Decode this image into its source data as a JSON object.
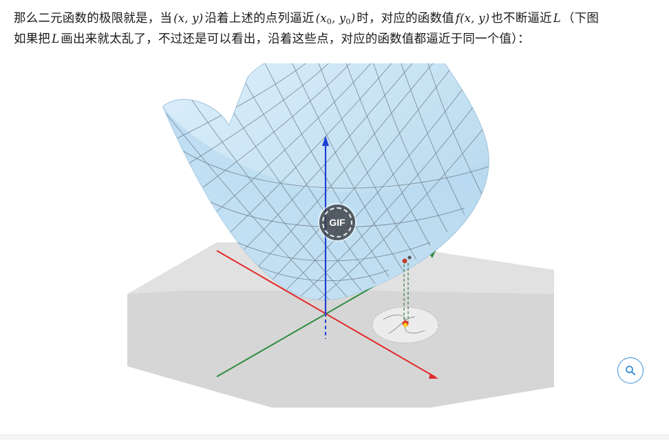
{
  "article": {
    "line1": {
      "t1": "那么二元函数的极限就是，当",
      "m1": "(x, y)",
      "t2": "沿着上述的点列逼近",
      "m2_open": "(x",
      "m2_sub1": "0",
      "m2_mid": ", y",
      "m2_sub2": "0",
      "m2_close": ")",
      "t3": "时，对应的函数值",
      "m3": "f(x, y)",
      "t4": "也不断逼近",
      "m4": "L",
      "t5": "（下图"
    },
    "line2": {
      "t1": "如果把",
      "m1": "L",
      "t2": "画出来就太乱了，不过还是可以看出，沿着这些点，对应的函数值都逼近于同一个值）："
    }
  },
  "figure": {
    "gif_badge_label": "GIF",
    "colors": {
      "surface": "#cfe6f5",
      "axis_z": "#1f3fd6",
      "axis_x": "#e02a2a",
      "axis_y": "#2e8b3e",
      "plane": "#d9d9d9"
    }
  },
  "icons": {
    "zoom": "magnifier-icon"
  },
  "accent_color": "#3b8fd9"
}
